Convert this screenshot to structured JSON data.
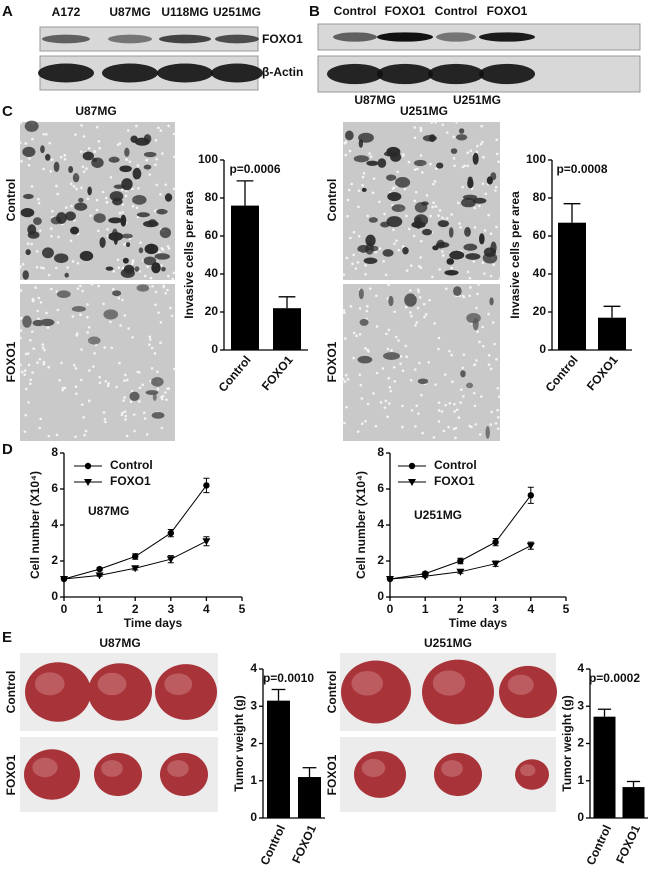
{
  "figure": {
    "panels": [
      "A",
      "B",
      "C",
      "D",
      "E"
    ],
    "blot_a": {
      "lanes": [
        "A172",
        "U87MG",
        "U118MG",
        "U251MG"
      ],
      "labels": [
        "FOXO1",
        "β-Actin"
      ]
    },
    "blot_b": {
      "lanes": [
        "Control",
        "FOXO1",
        "Control",
        "FOXO1"
      ],
      "groups": [
        "U87MG",
        "U251MG"
      ]
    },
    "micrographs": [
      {
        "title": "U87MG",
        "rows": [
          "Control",
          "FOXO1"
        ]
      },
      {
        "title": "U251MG",
        "rows": [
          "Control",
          "FOXO1"
        ]
      }
    ],
    "tumors": [
      {
        "title": "U87MG",
        "rows": [
          "Control",
          "FOXO1"
        ]
      },
      {
        "title": "U251MG",
        "rows": [
          "Control",
          "FOXO1"
        ]
      }
    ]
  },
  "chart_data": [
    {
      "type": "bar",
      "categories": [
        "Control",
        "FOXO1"
      ],
      "values": [
        76,
        22
      ],
      "errors": [
        13,
        6
      ],
      "color": "#000000",
      "ylim": [
        0,
        100
      ],
      "yticks": [
        0,
        20,
        40,
        60,
        80,
        100
      ],
      "ylabel": "Invasive cells per area",
      "annotation": "p=0.0006"
    },
    {
      "type": "bar",
      "categories": [
        "Control",
        "FOXO1"
      ],
      "values": [
        67,
        17
      ],
      "errors": [
        10,
        6
      ],
      "color": "#000000",
      "ylim": [
        0,
        100
      ],
      "yticks": [
        0,
        20,
        40,
        60,
        80,
        100
      ],
      "ylabel": "Invasive cells per area",
      "annotation": "p=0.0008"
    },
    {
      "type": "line",
      "x": [
        0,
        1,
        2,
        3,
        4
      ],
      "series": [
        {
          "name": "Control",
          "color": "#000000",
          "marker": "circle",
          "values": [
            1,
            1.55,
            2.25,
            3.55,
            6.2
          ],
          "errors": [
            0.05,
            0.08,
            0.15,
            0.2,
            0.4
          ]
        },
        {
          "name": "FOXO1",
          "color": "#000000",
          "marker": "triangle-down",
          "values": [
            1,
            1.2,
            1.6,
            2.1,
            3.1
          ],
          "errors": [
            0.05,
            0.05,
            0.1,
            0.2,
            0.25
          ]
        }
      ],
      "xlim": [
        0,
        5
      ],
      "xticks": [
        0,
        1,
        2,
        3,
        4,
        5
      ],
      "ylim": [
        0,
        8
      ],
      "yticks": [
        0,
        2,
        4,
        6,
        8
      ],
      "xlabel": "Time days",
      "ylabel": "Cell number (X10⁴)",
      "annotation": "U87MG"
    },
    {
      "type": "line",
      "x": [
        0,
        1,
        2,
        3,
        4
      ],
      "series": [
        {
          "name": "Control",
          "color": "#000000",
          "marker": "circle",
          "values": [
            1,
            1.3,
            2.0,
            3.05,
            5.65
          ],
          "errors": [
            0.05,
            0.08,
            0.15,
            0.2,
            0.45
          ]
        },
        {
          "name": "FOXO1",
          "color": "#000000",
          "marker": "triangle-down",
          "values": [
            1,
            1.15,
            1.4,
            1.85,
            2.85
          ],
          "errors": [
            0.05,
            0.05,
            0.08,
            0.15,
            0.2
          ]
        }
      ],
      "xlim": [
        0,
        5
      ],
      "xticks": [
        0,
        1,
        2,
        3,
        4,
        5
      ],
      "ylim": [
        0,
        8
      ],
      "yticks": [
        0,
        2,
        4,
        6,
        8
      ],
      "xlabel": "Time days",
      "ylabel": "Cell number (X10⁴)",
      "annotation": "U251MG"
    },
    {
      "type": "bar",
      "categories": [
        "Control",
        "FOXO1"
      ],
      "values": [
        3.15,
        1.1
      ],
      "errors": [
        0.3,
        0.25
      ],
      "color": "#000000",
      "ylim": [
        0,
        4
      ],
      "yticks": [
        0,
        1,
        2,
        3,
        4
      ],
      "ylabel": "Tumor weight (g)",
      "annotation": "p=0.0010"
    },
    {
      "type": "bar",
      "categories": [
        "Control",
        "FOXO1"
      ],
      "values": [
        2.72,
        0.83
      ],
      "errors": [
        0.2,
        0.15
      ],
      "color": "#000000",
      "ylim": [
        0,
        4
      ],
      "yticks": [
        0,
        1,
        2,
        3,
        4
      ],
      "ylabel": "Tumor weight (g)",
      "annotation": "p=0.0002"
    }
  ]
}
